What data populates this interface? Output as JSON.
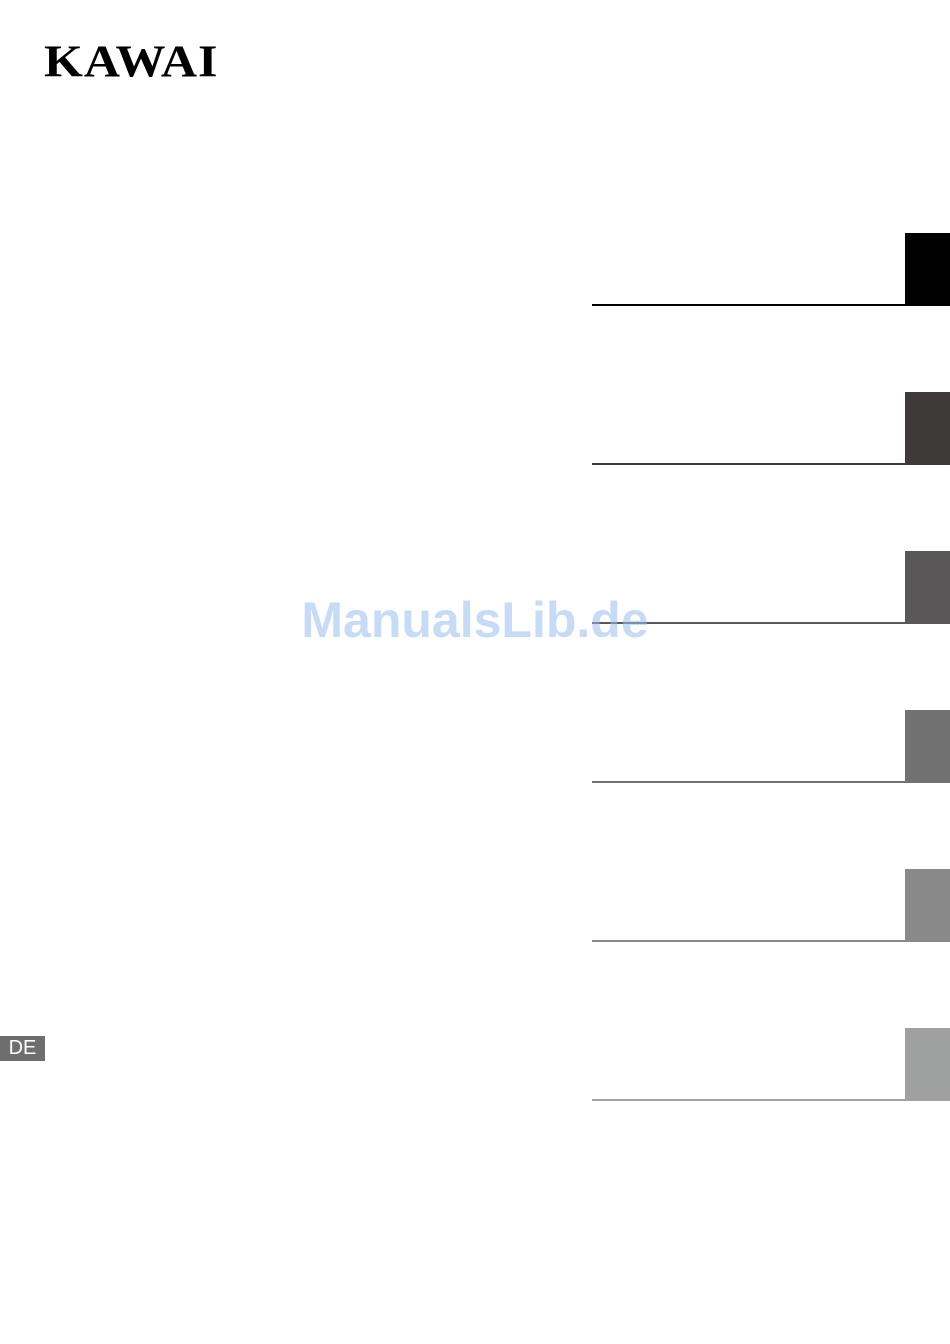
{
  "logo": "KAWAI",
  "watermark": "ManualsLib.de",
  "language_tab": "DE"
}
